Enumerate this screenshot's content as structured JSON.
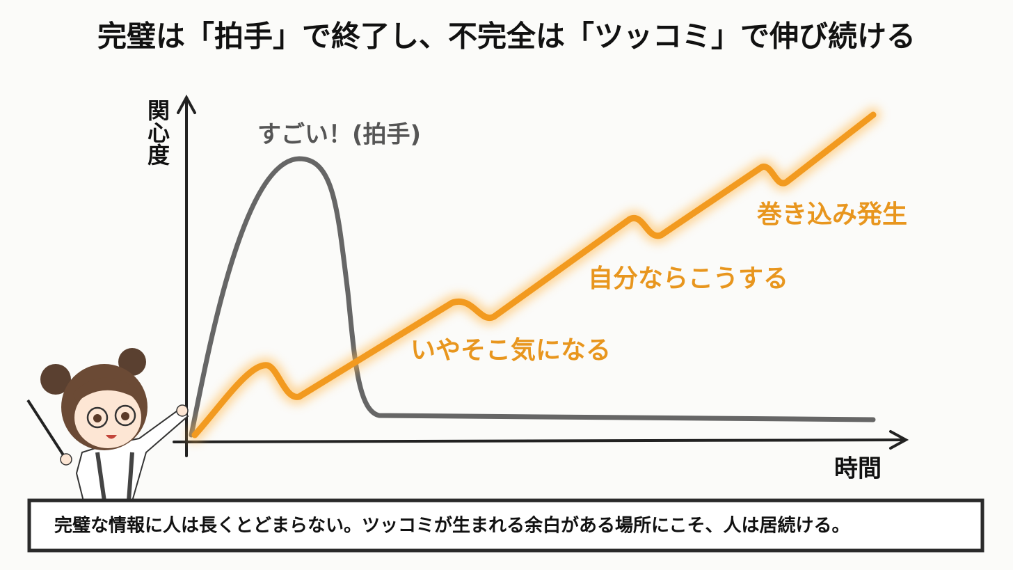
{
  "title": "完璧は「拍手」で終了し、不完全は「ツッコミ」で伸び続ける",
  "axes": {
    "y_label": "関心度",
    "x_label": "時間"
  },
  "annotations": {
    "peak": "すごい！(拍手)",
    "steps": [
      "いやそこ気になる",
      "自分ならこうする",
      "巻き込み発生"
    ]
  },
  "caption": "完璧な情報に人は長くとどまらない。ツッコミが生まれる余白がある場所にこそ、人は居続ける。"
}
